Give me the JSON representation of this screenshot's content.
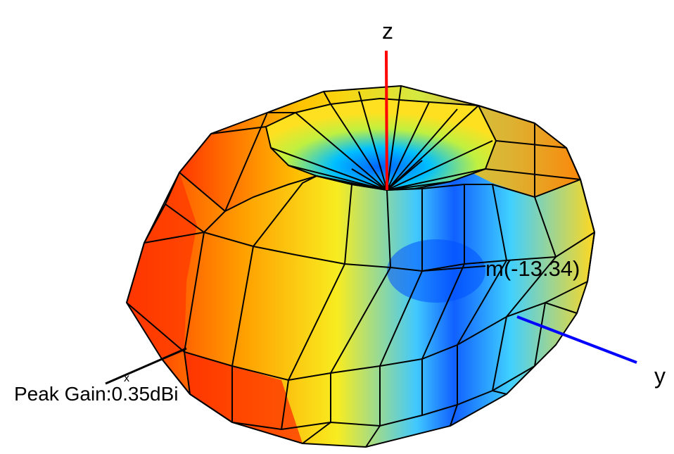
{
  "axes": {
    "z_label": "z",
    "y_label": "y",
    "x_label": "x",
    "z_color": "#ff0000",
    "y_color": "#0000ff",
    "x_color": "#000000"
  },
  "annotations": {
    "marker_label": "m(-13.34)",
    "peak_gain_label": "Peak Gain:",
    "peak_gain_value": "0.35dBi"
  },
  "colormap": {
    "high": "#ff2a00",
    "mid_high": "#ffd000",
    "mid_low": "#ffff40",
    "low": "#00c8ff",
    "lowest": "#0040ff"
  }
}
